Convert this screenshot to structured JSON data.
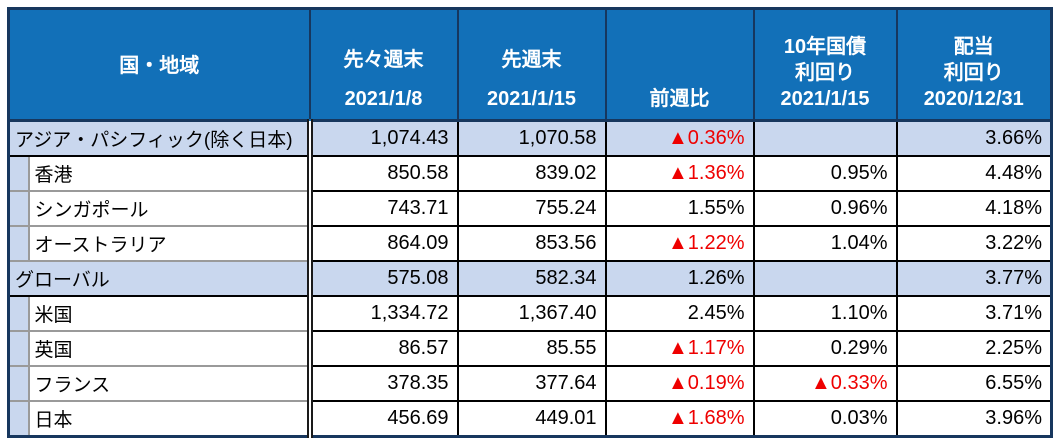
{
  "table": {
    "header": {
      "region": "国・地域",
      "w1_name": "先々週末",
      "w1_date": "2021/1/8",
      "w2_name": "先週末",
      "w2_date": "2021/1/15",
      "chg": "前週比",
      "bond_line1": "10年国債",
      "bond_line2": "利回り",
      "bond_date": "2021/1/15",
      "div_line1": "配当",
      "div_line2": "利回り",
      "div_date": "2020/12/31"
    },
    "rows": [
      {
        "label": "アジア・パシフィック(除く日本)",
        "w1": "1,074.43",
        "w2": "1,070.58",
        "chg": "▲0.36%",
        "bond": "",
        "div": "3.66%"
      },
      {
        "label": "香港",
        "w1": "850.58",
        "w2": "839.02",
        "chg": "▲1.36%",
        "bond": "0.95%",
        "div": "4.48%"
      },
      {
        "label": "シンガポール",
        "w1": "743.71",
        "w2": "755.24",
        "chg": "1.55%",
        "bond": "0.96%",
        "div": "4.18%"
      },
      {
        "label": "オーストラリア",
        "w1": "864.09",
        "w2": "853.56",
        "chg": "▲1.22%",
        "bond": "1.04%",
        "div": "3.22%"
      },
      {
        "label": "グローバル",
        "w1": "575.08",
        "w2": "582.34",
        "chg": "1.26%",
        "bond": "",
        "div": "3.77%"
      },
      {
        "label": "米国",
        "w1": "1,334.72",
        "w2": "1,367.40",
        "chg": "2.45%",
        "bond": "1.10%",
        "div": "3.71%"
      },
      {
        "label": "英国",
        "w1": "86.57",
        "w2": "85.55",
        "chg": "▲1.17%",
        "bond": "0.29%",
        "div": "2.25%"
      },
      {
        "label": "フランス",
        "w1": "378.35",
        "w2": "377.64",
        "chg": "▲0.19%",
        "bond": "▲0.33%",
        "div": "6.55%"
      },
      {
        "label": "日本",
        "w1": "456.69",
        "w2": "449.01",
        "chg": "▲1.68%",
        "bond": "0.03%",
        "div": "3.96%"
      }
    ]
  },
  "colors": {
    "header_bg": "#1270B8",
    "header_text": "#FFFFFF",
    "section_row_bg": "#C9D7EE",
    "negative_red": "#EE0000",
    "outer_border_navy": "#17375E",
    "inner_border_gray": "#9A9A9A"
  }
}
